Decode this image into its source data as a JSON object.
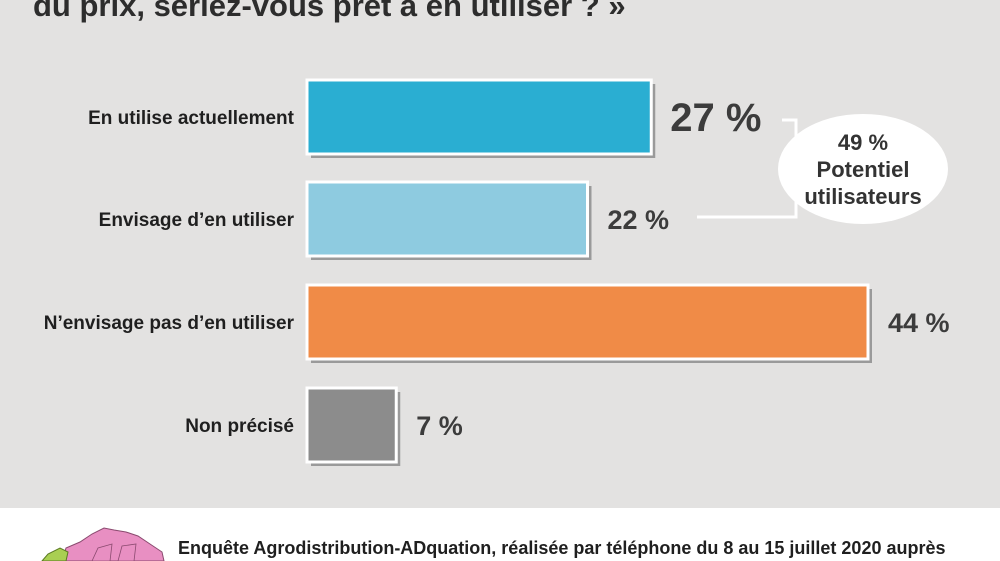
{
  "title": {
    "line1": "",
    "line2": "du prix, seriez-vous prêt à en utiliser ? »"
  },
  "chart_data": {
    "type": "bar",
    "orientation": "horizontal",
    "categories": [
      "En utilise actuellement",
      "Envisage d’en utiliser",
      "N’envisage pas d’en utiliser",
      "Non précisé"
    ],
    "values": [
      27,
      22,
      44,
      7
    ],
    "value_labels": [
      "27 %",
      "22 %",
      "44 %",
      "7 %"
    ],
    "colors": [
      "#2aaed2",
      "#8ecbe0",
      "#f08b47",
      "#8c8c8c"
    ],
    "unit": "%",
    "xlim": [
      0,
      44
    ],
    "grid": false,
    "annotation": {
      "value": "49 %",
      "line1": "Potentiel",
      "line2": "utilisateurs",
      "groups": [
        "En utilise actuellement",
        "Envisage d’en utiliser"
      ]
    }
  },
  "footer": {
    "text": "Enquête Agrodistribution-ADquation, réalisée par téléphone du 8 au 15 juillet 2020 auprès",
    "map_icon": "france-map-icon"
  }
}
